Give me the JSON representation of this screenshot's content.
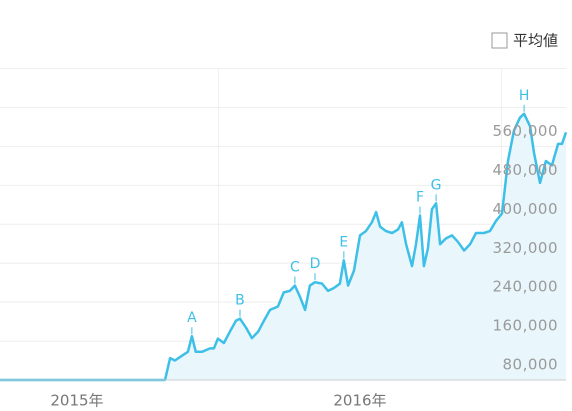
{
  "chart_data": {
    "type": "line",
    "x": [
      2015.228,
      2015.811,
      2015.829,
      2015.846,
      2015.871,
      2015.892,
      2015.906,
      2015.92,
      2015.942,
      2015.97,
      2015.984,
      2015.998,
      2016.019,
      2016.04,
      2016.062,
      2016.076,
      2016.097,
      2016.118,
      2016.14,
      2016.161,
      2016.182,
      2016.21,
      2016.231,
      2016.252,
      2016.27,
      2016.288,
      2016.306,
      2016.323,
      2016.341,
      2016.366,
      2016.387,
      2016.408,
      2016.429,
      2016.443,
      2016.458,
      2016.479,
      2016.5,
      2016.521,
      2016.542,
      2016.557,
      2016.571,
      2016.592,
      2016.613,
      2016.634,
      2016.648,
      2016.663,
      2016.684,
      2016.698,
      2016.712,
      2016.726,
      2016.74,
      2016.754,
      2016.769,
      2016.783,
      2016.804,
      2016.825,
      2016.846,
      2016.868,
      2016.889,
      2016.91,
      2016.938,
      2016.959,
      2016.981,
      2017.002,
      2017.023,
      2017.044,
      2017.065,
      2017.08,
      2017.101,
      2017.115,
      2017.136,
      2017.157,
      2017.178,
      2017.2,
      2017.214,
      2017.228
    ],
    "series": [
      {
        "color": "#3dbfe8",
        "values": [
          0,
          0,
          45000,
          40000,
          50000,
          58000,
          90000,
          58000,
          58000,
          65000,
          65000,
          85000,
          76000,
          99000,
          122000,
          126000,
          108000,
          86000,
          99000,
          122000,
          144000,
          151000,
          180000,
          183000,
          194000,
          171000,
          144000,
          194000,
          201000,
          198000,
          183000,
          189000,
          198000,
          246000,
          194000,
          225000,
          297000,
          306000,
          324000,
          345000,
          315000,
          306000,
          302000,
          309000,
          324000,
          279000,
          234000,
          279000,
          338000,
          234000,
          270000,
          351000,
          363000,
          279000,
          291000,
          297000,
          284000,
          266000,
          279000,
          302000,
          302000,
          306000,
          327000,
          342000,
          450000,
          512000,
          539000,
          547000,
          521000,
          467000,
          405000,
          450000,
          441000,
          485000,
          485000,
          509000
        ]
      }
    ],
    "annotations": [
      {
        "label": "A",
        "x": 2015.906
      },
      {
        "label": "B",
        "x": 2016.076
      },
      {
        "label": "C",
        "x": 2016.27
      },
      {
        "label": "D",
        "x": 2016.341
      },
      {
        "label": "E",
        "x": 2016.443
      },
      {
        "label": "F",
        "x": 2016.712
      },
      {
        "label": "G",
        "x": 2016.769
      },
      {
        "label": "H",
        "x": 2017.08
      }
    ],
    "xlim": [
      2015.228,
      2017.228
    ],
    "xticks": [
      {
        "value": 2015.5,
        "label": "2015年"
      },
      {
        "value": 2016.5,
        "label": "2016年"
      }
    ],
    "ylim": [
      0,
      640000
    ],
    "yticks": [
      {
        "value": 80000,
        "label": "80,000"
      },
      {
        "value": 160000,
        "label": "160,000"
      },
      {
        "value": 240000,
        "label": "240,000"
      },
      {
        "value": 320000,
        "label": "320,000"
      },
      {
        "value": 400000,
        "label": "400,000"
      },
      {
        "value": 480000,
        "label": "480,000"
      },
      {
        "value": 560000,
        "label": "560,000"
      }
    ],
    "grid": true
  },
  "controls": {
    "average_checkbox": "平均値"
  }
}
